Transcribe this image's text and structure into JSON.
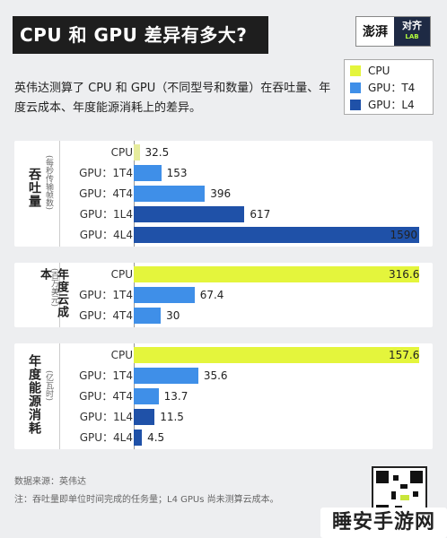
{
  "header": {
    "title": "CPU 和 GPU 差异有多大?",
    "logo_left": "澎湃",
    "logo_right": "对齐",
    "logo_right_sub": "LAB"
  },
  "description": "英伟达测算了 CPU 和 GPU（不同型号和数量）在吞吐量、年度云成本、年度能源消耗上的差异。",
  "colors": {
    "cpu": "#e4f53c",
    "gpu_t4": "#3f8fe8",
    "gpu_l4": "#1f51a8",
    "cpu_faded": "#e6ec9c"
  },
  "chart_data": [
    {
      "type": "bar",
      "orientation": "horizontal",
      "title_main": "吞吐量",
      "title_sub": "(每秒传输帧数)",
      "categories": [
        "CPU",
        "GPU：1T4",
        "GPU：4T4",
        "GPU：1L4",
        "GPU：4L4"
      ],
      "values": [
        32.5,
        153,
        396,
        617,
        1590
      ],
      "labels": [
        "32.5",
        "153",
        "396",
        "617",
        "1590"
      ],
      "xlim": [
        0,
        1590
      ]
    },
    {
      "type": "bar",
      "orientation": "horizontal",
      "title_main": "年度云成本",
      "title_sub": "(百万美元)",
      "categories": [
        "CPU",
        "GPU：1T4",
        "GPU：4T4"
      ],
      "values": [
        316.6,
        67.4,
        30
      ],
      "labels": [
        "316.6",
        "67.4",
        "30"
      ],
      "xlim": [
        0,
        316.6
      ]
    },
    {
      "type": "bar",
      "orientation": "horizontal",
      "title_main": "年度能源消耗",
      "title_sub": "(亿瓦时)",
      "categories": [
        "CPU",
        "GPU：1T4",
        "GPU：4T4",
        "GPU：1L4",
        "GPU：4L4"
      ],
      "values": [
        157.6,
        35.6,
        13.7,
        11.5,
        4.5
      ],
      "labels": [
        "157.6",
        "35.6",
        "13.7",
        "11.5",
        "4.5"
      ],
      "xlim": [
        0,
        157.6
      ]
    }
  ],
  "legend": [
    {
      "label": "CPU",
      "color": "#e4f53c"
    },
    {
      "label": "GPU：T4",
      "color": "#3f8fe8"
    },
    {
      "label": "GPU：L4",
      "color": "#1f51a8"
    }
  ],
  "source": {
    "line1": "数据来源：英伟达",
    "line2": "注：吞吐量即单位时间完成的任务量；L4 GPUs 尚未测算云成本。"
  },
  "watermark": "睡安手游网"
}
